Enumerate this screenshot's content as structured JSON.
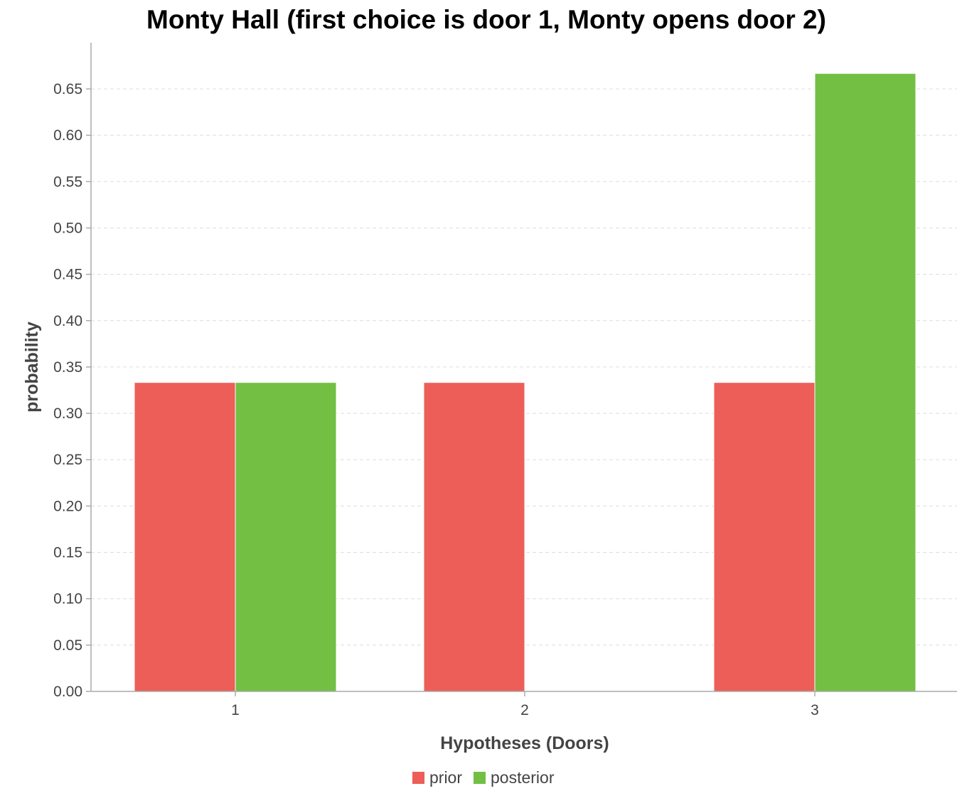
{
  "chart_data": {
    "type": "bar",
    "title": "Monty Hall (first choice is door 1, Monty opens door 2)",
    "xlabel": "Hypotheses (Doors)",
    "ylabel": "probability",
    "categories": [
      "1",
      "2",
      "3"
    ],
    "series": [
      {
        "name": "prior",
        "color": "#ec5e57",
        "values": [
          0.3333,
          0.3333,
          0.3333
        ]
      },
      {
        "name": "posterior",
        "color": "#72bf44",
        "values": [
          0.3333,
          0.0,
          0.6667
        ]
      }
    ],
    "ylim": [
      0,
      0.7
    ],
    "yticks": [
      "0.00",
      "0.05",
      "0.10",
      "0.15",
      "0.20",
      "0.25",
      "0.30",
      "0.35",
      "0.40",
      "0.45",
      "0.50",
      "0.55",
      "0.60",
      "0.65"
    ],
    "grid": true,
    "legend_position": "bottom-center"
  }
}
